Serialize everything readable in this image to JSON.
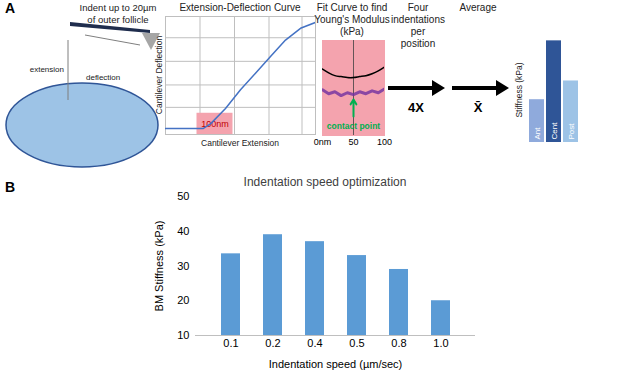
{
  "panel_a": {
    "label": "A",
    "schematic": {
      "caption": [
        "Indent up to 20µm",
        "of outer follicle"
      ],
      "extension": "extension",
      "deflection": "deflection"
    },
    "curve_chart": {
      "type": "line",
      "title": "Extension-Deflection Curve",
      "x_label": "Cantilever Extension",
      "y_label": "Cantilever Deflection",
      "x": [
        0,
        10,
        20,
        25,
        30,
        40,
        50,
        60,
        70,
        80,
        90,
        100
      ],
      "values": [
        5,
        5,
        5,
        5,
        9,
        22,
        38,
        52,
        66,
        80,
        90,
        95
      ],
      "xlim": [
        0,
        100
      ],
      "ylim": [
        0,
        100
      ],
      "xticks": [
        23,
        46,
        69,
        91
      ],
      "yticks": [
        23,
        42,
        62,
        82
      ],
      "grid": true,
      "tick_labels": false,
      "color": "#4472c4",
      "highlight": {
        "x_from": 21,
        "x_to": 45,
        "y_from": 0,
        "y_to": 18,
        "label": "100nm",
        "color": "#f4a3ae",
        "label_color": "#c00000"
      }
    },
    "fit_chart": {
      "type": "line",
      "title": [
        "Fit Curve to find",
        "Young's Modulus",
        "(kPa)"
      ],
      "x": [
        0,
        10,
        20,
        30,
        40,
        50,
        60,
        70,
        80,
        90,
        100
      ],
      "fit": [
        70,
        66,
        63,
        62,
        61,
        61,
        62,
        63,
        65,
        68,
        72
      ],
      "measured": [
        48,
        44,
        46,
        42,
        45,
        43,
        46,
        44,
        47,
        45,
        49
      ],
      "xlim": [
        0,
        100
      ],
      "ylim": [
        0,
        100
      ],
      "xticks": [
        {
          "value": 0,
          "label": "0nm"
        },
        50,
        100
      ],
      "fit_color": "#000000",
      "measured_color": "#7030a0",
      "background": "#f4a3ae",
      "contact_point": {
        "x": 50,
        "label": "contact point",
        "color": "#00b050"
      }
    },
    "repeat": {
      "text": [
        "Four",
        "indentations",
        "per",
        "position"
      ],
      "label": "4X"
    },
    "average": {
      "text": "Average",
      "label": "X̄"
    },
    "summary_chart": {
      "type": "bar",
      "y_label": "Stiffness (kPa)",
      "categories": [
        "Ant",
        "Cent",
        "Post"
      ],
      "values": [
        32,
        76,
        46
      ],
      "colors": [
        "#8faadc",
        "#2f5597",
        "#9dc3e6"
      ],
      "ylim": [
        0,
        80
      ],
      "tick_labels": false
    }
  },
  "panel_b_label": "B",
  "chart_data": {
    "type": "bar",
    "title": "Indentation speed optimization",
    "x_label": "Indentation speed (µm/sec)",
    "y_label": "BM Stiffness (kPa)",
    "categories": [
      "0.1",
      "0.2",
      "0.4",
      "0.5",
      "0.8",
      "1.0"
    ],
    "values": [
      33.5,
      39,
      37,
      33,
      29,
      20
    ],
    "color": "#5b9bd5",
    "ylim": [
      10,
      50
    ],
    "yticks": [
      10,
      20,
      30,
      40,
      50
    ],
    "grid": false
  }
}
